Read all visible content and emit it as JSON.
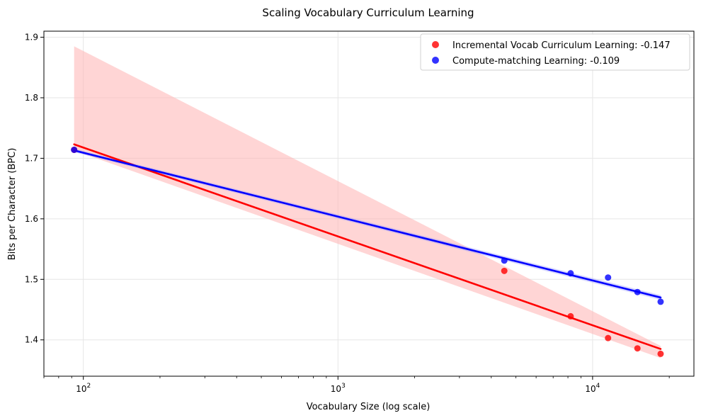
{
  "chart_data": {
    "type": "scatter",
    "title": "Scaling Vocabulary Curriculum Learning",
    "xlabel": "Vocabulary Size (log scale)",
    "ylabel": "Bits per Character (BPC)",
    "xscale": "log",
    "xlim": [
      70,
      25000
    ],
    "ylim": [
      1.34,
      1.91
    ],
    "xticks": [
      {
        "value": 100,
        "base": "10",
        "exp": "2"
      },
      {
        "value": 1000,
        "base": "10",
        "exp": "3"
      },
      {
        "value": 10000,
        "base": "10",
        "exp": "4"
      }
    ],
    "yticks": [
      {
        "value": 1.4,
        "label": "1.4"
      },
      {
        "value": 1.5,
        "label": "1.5"
      },
      {
        "value": 1.6,
        "label": "1.6"
      },
      {
        "value": 1.7,
        "label": "1.7"
      },
      {
        "value": 1.8,
        "label": "1.8"
      },
      {
        "value": 1.9,
        "label": "1.9"
      }
    ],
    "grid": true,
    "legend_position": "top-right",
    "series": [
      {
        "name": "Incremental Vocab Curriculum Learning: -0.147",
        "color": "#ff0000",
        "x": [
          92,
          4500,
          8200,
          11500,
          15000,
          18500
        ],
        "y": [
          1.714,
          1.514,
          1.439,
          1.403,
          1.386,
          1.377
        ],
        "fit_y": [
          1.723,
          1.385
        ],
        "ci_upper": [
          1.885,
          1.39
        ],
        "ci_lower": [
          1.713,
          1.37
        ]
      },
      {
        "name": "Compute-matching Learning: -0.109",
        "color": "#0000ff",
        "x": [
          92,
          4500,
          8200,
          11500,
          15000,
          18500
        ],
        "y": [
          1.714,
          1.531,
          1.51,
          1.503,
          1.479,
          1.463
        ],
        "fit_y": [
          1.713,
          1.47
        ],
        "ci_upper": [
          1.716,
          1.474
        ],
        "ci_lower": [
          1.71,
          1.466
        ]
      }
    ],
    "fit_x": [
      92,
      18500
    ]
  }
}
